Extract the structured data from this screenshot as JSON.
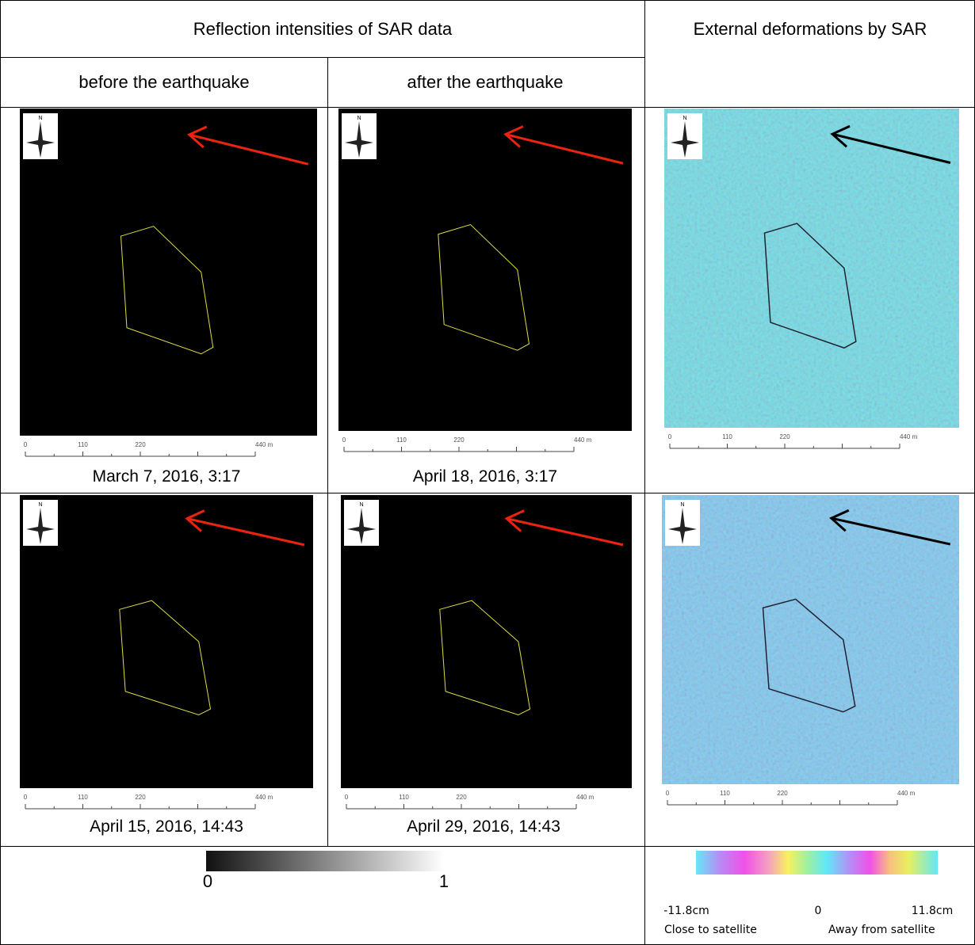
{
  "table": {
    "header": [
      "Reflection intensities of SAR data",
      "External deformations by SAR"
    ],
    "subheader": [
      "before the earthquake",
      "after the earthquake"
    ],
    "rows": [
      {
        "dates": [
          "March 7, 2016, 3:17",
          "April 18, 2016, 3:17"
        ]
      },
      {
        "dates": [
          "April 15, 2016, 14:43",
          "April 29, 2016, 14:43"
        ]
      }
    ]
  },
  "compass_label": "N",
  "scale_bar": {
    "labels": [
      "0",
      "110",
      "220",
      "440 m"
    ]
  },
  "intensity_legend": {
    "min": "0",
    "max": "1"
  },
  "deformation_legend": {
    "min": "-11.8cm",
    "mid": "0",
    "max": "11.8cm",
    "left_label": "Close to satellite",
    "right_label": "Away from satellite"
  }
}
